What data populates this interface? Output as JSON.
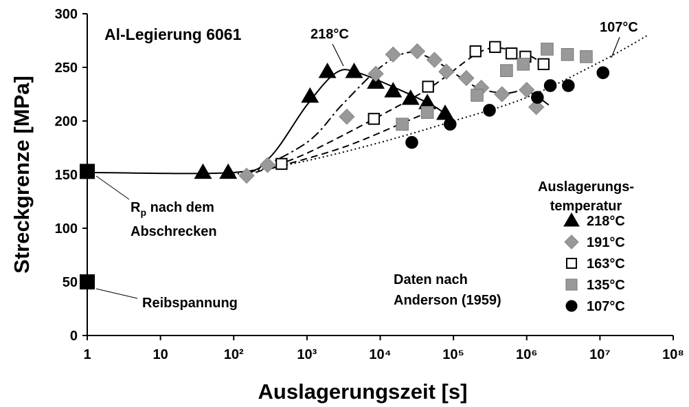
{
  "chart_data": {
    "type": "scatter",
    "title": "Al-Legierung 6061",
    "x_label": "Auslagerungszeit [s]",
    "y_label": "Streckgrenze [MPa]",
    "xscale": "log",
    "xlim": [
      1,
      100000000
    ],
    "xticks": [
      1,
      10,
      {
        "value": 100,
        "label": "10²"
      },
      {
        "value": 1000,
        "label": "10³"
      },
      {
        "value": 10000,
        "label": "10⁴"
      },
      {
        "value": 100000,
        "label": "10⁵"
      },
      {
        "value": 1000000,
        "label": "10⁶"
      },
      {
        "value": 10000000,
        "label": "10⁷"
      },
      {
        "value": 100000000,
        "label": "10⁸"
      }
    ],
    "ylim": [
      0,
      300
    ],
    "yticks": [
      0,
      50,
      100,
      150,
      200,
      250,
      300
    ],
    "legend_title": [
      "Auslagerungs-",
      "temperatur"
    ],
    "legend_position": "right",
    "series": [
      {
        "name": "218°C",
        "marker": "triangle",
        "color": "#000000",
        "stroke": "#000000",
        "x": [
          38,
          84,
          1100,
          1900,
          4400,
          8700,
          15000,
          26000,
          44000,
          77000
        ],
        "values": [
          152,
          152,
          223,
          246,
          246,
          236,
          228,
          221,
          217,
          207
        ],
        "curve": {
          "style": "solid",
          "x": [
            1,
            100,
            300,
            1000,
            2500,
            5000,
            20000,
            60000,
            90000
          ],
          "y": [
            152,
            152,
            165,
            215,
            245,
            245,
            228,
            212,
            200
          ]
        }
      },
      {
        "name": "191°C",
        "marker": "diamond",
        "color": "#999999",
        "stroke": "#888888",
        "x": [
          150,
          290,
          3500,
          8700,
          15000,
          32000,
          55000,
          80000,
          150000,
          240000,
          460000,
          1000000,
          1350000
        ],
        "values": [
          149,
          159,
          204,
          244,
          262,
          265,
          257,
          246,
          240,
          231,
          225,
          229,
          213
        ],
        "curve": {
          "style": "dashdot",
          "x": [
            150,
            1000,
            3000,
            10000,
            25000,
            60000,
            200000,
            500000,
            1000000,
            2000000
          ],
          "y": [
            150,
            180,
            215,
            250,
            264,
            255,
            232,
            226,
            228,
            215
          ]
        }
      },
      {
        "name": "163°C",
        "marker": "square-open",
        "color": "#ffffff",
        "stroke": "#000000",
        "x": [
          450,
          8200,
          45000,
          200000,
          370000,
          620000,
          960000,
          1700000
        ],
        "values": [
          160,
          202,
          232,
          265,
          269,
          263,
          260,
          253
        ],
        "curve": {
          "style": "dashed",
          "x": [
            200,
            1000,
            10000,
            50000,
            200000,
            400000,
            1000000,
            2000000
          ],
          "y": [
            152,
            170,
            205,
            232,
            262,
            268,
            262,
            250
          ]
        }
      },
      {
        "name": "135°C",
        "marker": "square",
        "color": "#999999",
        "stroke": "#777777",
        "x": [
          20000,
          44000,
          210000,
          530000,
          900000,
          1900000,
          3600000,
          6500000
        ],
        "values": [
          197,
          208,
          224,
          247,
          253,
          267,
          262,
          260
        ],
        "curve": {
          "style": "dashed",
          "x": [
            300,
            3000,
            20000,
            44000
          ],
          "y": [
            155,
            175,
            198,
            208
          ]
        }
      },
      {
        "name": "107°C",
        "marker": "circle",
        "color": "#000000",
        "stroke": "#000000",
        "x": [
          27000,
          90000,
          310000,
          1400000,
          2100000,
          3700000,
          11000000
        ],
        "values": [
          180,
          197,
          210,
          222,
          233,
          233,
          245
        ],
        "curve": {
          "style": "dotted",
          "x": [
            100,
            1000,
            10000,
            100000,
            1000000,
            10000000,
            45000000
          ],
          "y": [
            150,
            163,
            180,
            200,
            222,
            255,
            280
          ]
        }
      }
    ],
    "reference_points": [
      {
        "x": 1,
        "y": 153,
        "label": {
          "symbol": "R",
          "subscript": "p",
          "text": " nach dem",
          "line2": "Abschrecken"
        }
      },
      {
        "x": 1,
        "y": 50,
        "label": {
          "text": "Reibspannung"
        }
      }
    ],
    "annotations": [
      "218°C",
      "107°C",
      "Daten nach",
      "Anderson (1959)"
    ]
  }
}
